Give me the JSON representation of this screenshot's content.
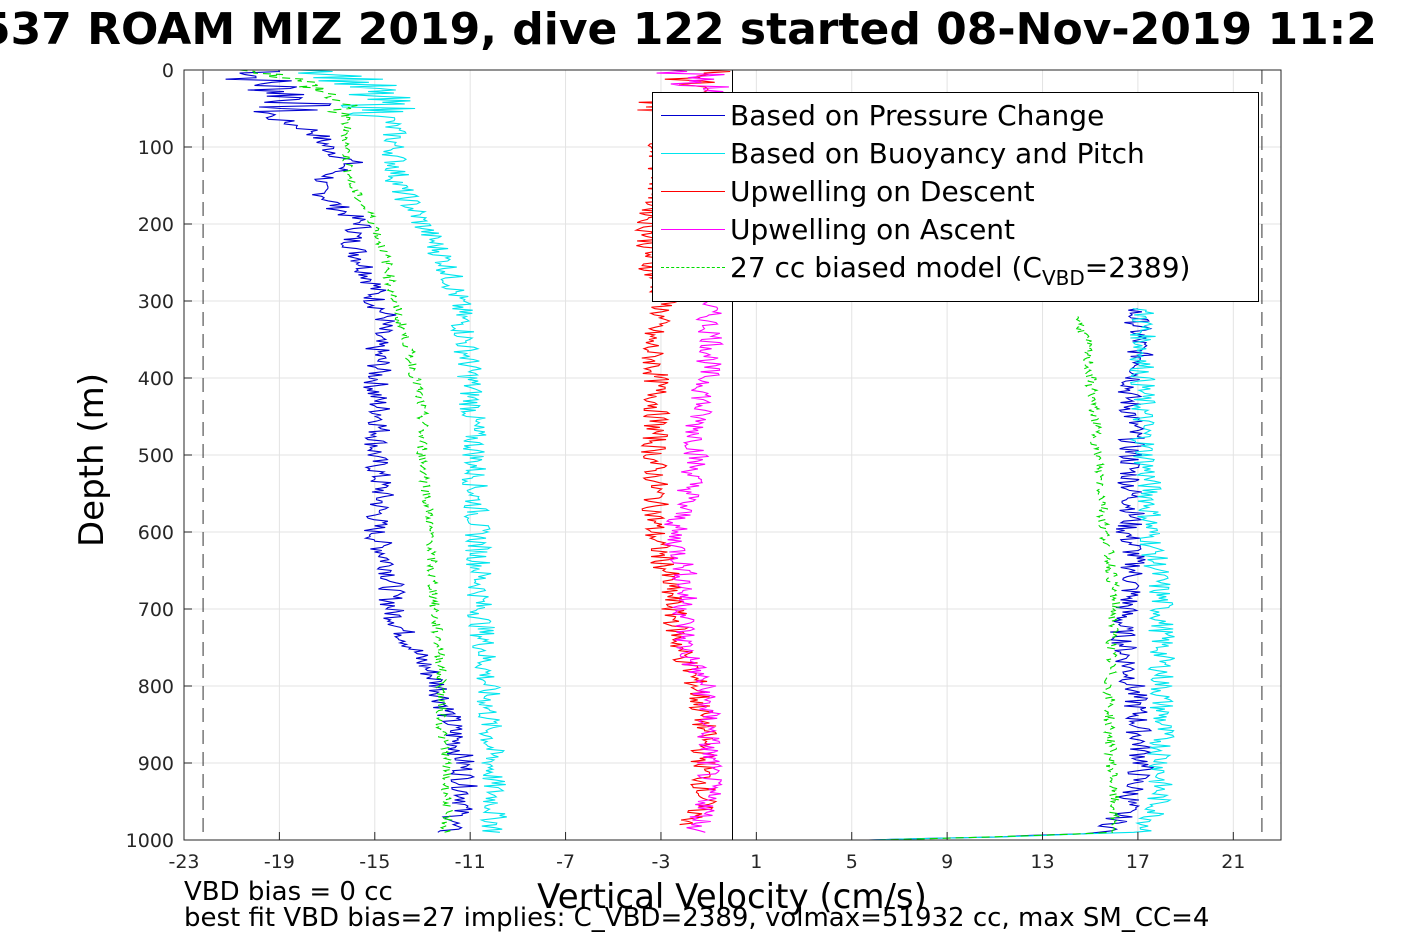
{
  "title": "537 ROAM MIZ 2019, dive 122 started 08-Nov-2019 11:2",
  "footer": {
    "line1": "VBD bias = 0 cc",
    "line2": "best fit VBD bias=27 implies: C_VBD=2389, volmax=51932 cc, max SM_CC=4"
  },
  "legend": {
    "items": [
      {
        "label": "Based on Pressure Change",
        "color": "#0000d0",
        "dash": false
      },
      {
        "label": "Based on Buoyancy and Pitch",
        "color": "#00e5ee",
        "dash": false
      },
      {
        "label": "Upwelling on Descent",
        "color": "#ff0000",
        "dash": false
      },
      {
        "label": "Upwelling on Ascent",
        "color": "#ff00ff",
        "dash": false
      }
    ],
    "model": {
      "prefix": "27 cc biased model (C",
      "sub": "VBD",
      "suffix": "=2389)",
      "color": "#00dd00"
    }
  },
  "chart_data": {
    "type": "line",
    "title": "537 ROAM MIZ 2019, dive 122 started 08-Nov-2019 11:2",
    "xlabel": "Vertical Velocity (cm/s)",
    "ylabel": "Depth (m)",
    "xlim": [
      -23,
      23
    ],
    "ylim": [
      0,
      1000
    ],
    "y_reversed": true,
    "grid": true,
    "legend_position": "top-right",
    "xticks": [
      -23,
      -19,
      -15,
      -11,
      -7,
      -3,
      1,
      5,
      9,
      13,
      17,
      21
    ],
    "yticks": [
      0,
      100,
      200,
      300,
      400,
      500,
      600,
      700,
      800,
      900,
      1000
    ],
    "vlines": [
      {
        "x": -22.2,
        "style": "dashed"
      },
      {
        "x": 0,
        "style": "solid"
      },
      {
        "x": 22.2,
        "style": "dashed"
      }
    ],
    "series": [
      {
        "name": "Based on Pressure Change",
        "color": "#0000d0",
        "segments": [
          {
            "depth": [
              0,
              10,
              40,
              60,
              80,
              100,
              120,
              150,
              180,
              200,
              220,
              250,
              280,
              300,
              320,
              350,
              380,
              420,
              450,
              500,
              550,
              600,
              650,
              700,
              730,
              760,
              800,
              850,
              900,
              950,
              990
            ],
            "values": [
              -19,
              -20,
              -18,
              -19.5,
              -17.5,
              -17,
              -16,
              -17.5,
              -16.5,
              -15.5,
              -16,
              -15.5,
              -15,
              -15,
              -14.5,
              -15,
              -14.8,
              -15,
              -14.7,
              -15,
              -14.7,
              -15,
              -14.3,
              -14.3,
              -13.8,
              -13.2,
              -12.3,
              -11.8,
              -11.3,
              -11.2,
              -12
            ]
          },
          {
            "depth": [
              1000,
              995,
              990,
              960,
              900,
              850,
              800,
              760,
              720,
              680,
              650,
              620,
              600,
              580,
              540,
              500,
              460,
              420,
              380,
              360,
              330,
              310
            ],
            "values": [
              6,
              12,
              15.7,
              16.5,
              17.2,
              17.0,
              16.8,
              16.5,
              16.3,
              16.7,
              16.8,
              16.8,
              16.5,
              16.8,
              16.7,
              16.7,
              16.8,
              16.6,
              17.2,
              17.0,
              17.0,
              16.8
            ]
          }
        ]
      },
      {
        "name": "Based on Buoyancy and Pitch",
        "color": "#00e5ee",
        "segments": [
          {
            "depth": [
              0,
              10,
              40,
              60,
              80,
              100,
              150,
              200,
              250,
              300,
              350,
              400,
              450,
              500,
              550,
              600,
              650,
              700,
              750,
              800,
              850,
              900,
              950,
              990
            ],
            "values": [
              -17,
              -16,
              -15,
              -14.5,
              -14.2,
              -14.2,
              -14.0,
              -13.0,
              -12.0,
              -11.5,
              -11.2,
              -11.0,
              -10.9,
              -10.8,
              -10.8,
              -10.7,
              -10.6,
              -10.6,
              -10.4,
              -10.3,
              -10.2,
              -10.1,
              -10.0,
              -10.0
            ]
          },
          {
            "depth": [
              1000,
              995,
              990,
              960,
              900,
              850,
              800,
              750,
              700,
              650,
              600,
              550,
              500,
              450,
              400,
              360,
              330,
              310
            ],
            "values": [
              6,
              12,
              17.3,
              17.8,
              18.0,
              18.0,
              18.0,
              18.0,
              18.0,
              17.8,
              17.5,
              17.5,
              17.3,
              17.2,
              17.2,
              17.2,
              17.2,
              17.2
            ]
          }
        ]
      },
      {
        "name": "Upwelling on Descent",
        "color": "#ff0000",
        "segments": [
          {
            "depth": [
              0,
              20,
              50,
              100,
              150,
              200,
              250,
              300,
              350,
              400,
              450,
              500,
              550,
              600,
              650,
              700,
              750,
              800,
              850,
              900,
              950,
              980
            ],
            "values": [
              -1,
              -2,
              -2.5,
              -3,
              -3,
              -3.5,
              -3.5,
              -2.8,
              -3.5,
              -3.2,
              -3.2,
              -3.3,
              -3.2,
              -3.3,
              -2.8,
              -2.5,
              -2.2,
              -1.5,
              -1.2,
              -1.2,
              -1.2,
              -1.8
            ]
          }
        ]
      },
      {
        "name": "Upwelling on Ascent",
        "color": "#ff00ff",
        "segments": [
          {
            "depth": [
              0,
              20,
              50,
              100,
              150,
              200,
              250,
              300,
              330,
              350,
              380,
              420,
              460,
              500,
              550,
              600,
              650,
              700,
              750,
              800,
              850,
              900,
              950,
              990
            ],
            "values": [
              -2,
              -1.5,
              -1.5,
              -2.5,
              -2.0,
              -1.5,
              -1.5,
              -1.0,
              -1.0,
              -0.8,
              -1.0,
              -1.2,
              -1.5,
              -1.5,
              -1.8,
              -2.5,
              -2.0,
              -2.0,
              -2.0,
              -1.2,
              -1.0,
              -1.0,
              -1.0,
              -1.5
            ]
          }
        ]
      },
      {
        "name": "27 cc biased model (CVBD=2389)",
        "color": "#00dd00",
        "dashed": true,
        "segments": [
          {
            "depth": [
              0,
              15,
              40,
              70,
              100,
              150,
              200,
              250,
              300,
              350,
              400,
              450,
              500,
              550,
              600,
              650,
              700,
              750,
              800,
              850,
              900,
              950,
              990
            ],
            "values": [
              -20,
              -18,
              -16.5,
              -16.2,
              -16.2,
              -16.0,
              -15.0,
              -14.5,
              -14.2,
              -13.7,
              -13.3,
              -13.0,
              -13.0,
              -12.8,
              -12.7,
              -12.6,
              -12.5,
              -12.3,
              -12.2,
              -12.2,
              -12.0,
              -12.0,
              -12.0
            ]
          },
          {
            "depth": [
              1000,
              995,
              990,
              950,
              900,
              850,
              800,
              750,
              700,
              650,
              600,
              550,
              500,
              450,
              400,
              350,
              320
            ],
            "values": [
              6,
              12,
              16.0,
              16.0,
              15.9,
              15.8,
              15.8,
              15.9,
              16.0,
              15.9,
              15.6,
              15.5,
              15.3,
              15.2,
              15.0,
              14.8,
              14.5
            ]
          }
        ]
      }
    ]
  }
}
